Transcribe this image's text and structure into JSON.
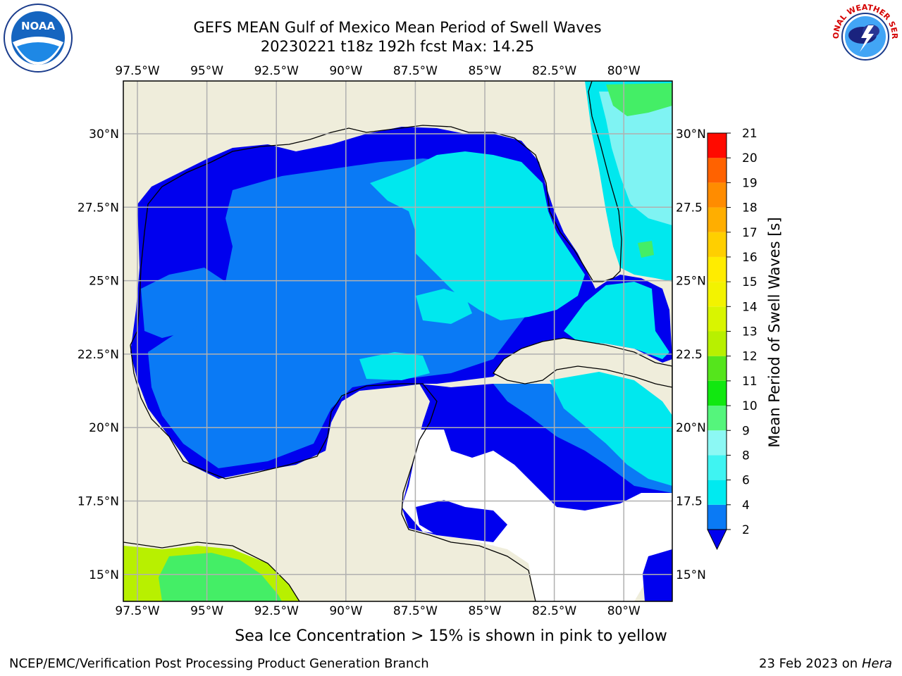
{
  "header": {
    "title_line1": "GEFS MEAN Gulf of Mexico Mean Period of Swell Waves",
    "title_line2": "20230221 t18z 192h fcst   Max: 14.25"
  },
  "logos": {
    "noaa_text": "NOAA",
    "nws_text": "NATIONAL WEATHER SERVICE"
  },
  "map": {
    "lon_ticks": [
      "97.5°W",
      "95°W",
      "92.5°W",
      "90°W",
      "87.5°W",
      "85°W",
      "82.5°W",
      "80°W"
    ],
    "lat_ticks_left": [
      "30°N",
      "27.5°N",
      "25°N",
      "22.5°N",
      "20°N",
      "17.5°N",
      "15°N"
    ],
    "lat_ticks_right": [
      "30°N",
      "27.5",
      "25°N",
      "22.5",
      "20°N",
      "17.5",
      "15°N"
    ],
    "colors": {
      "land": "#efeddb",
      "grid": "#b0b0b0",
      "blue": "#0000ee",
      "mid_blue": "#0a7af5",
      "cyan": "#00e8ee",
      "light_cyan": "#7ff3f3",
      "green": "#44ee66",
      "yellow_green": "#b8f000"
    }
  },
  "colorbar": {
    "label": "Mean Period of Swell Waves [s]",
    "ticks": [
      "2",
      "4",
      "6",
      "8",
      "9",
      "10",
      "11",
      "12",
      "13",
      "14",
      "15",
      "16",
      "17",
      "18",
      "19",
      "20",
      "21"
    ],
    "colors": [
      "#0a7af5",
      "#00eaf0",
      "#3ff4f2",
      "#8cf8f4",
      "#55f57c",
      "#11e810",
      "#55e51c",
      "#b8f000",
      "#d9f500",
      "#f3f300",
      "#ffec00",
      "#ffcf00",
      "#ffae00",
      "#ff8c00",
      "#ff6200",
      "#ff3c00",
      "#ff0a00"
    ],
    "extend_color": "#0000ee"
  },
  "footer": {
    "note": "Sea Ice Concentration > 15% is shown in pink to yellow",
    "branch": "NCEP/EMC/Verification Post Processing Product Generation Branch",
    "date": "23 Feb 2023 on",
    "machine": "Hera"
  }
}
